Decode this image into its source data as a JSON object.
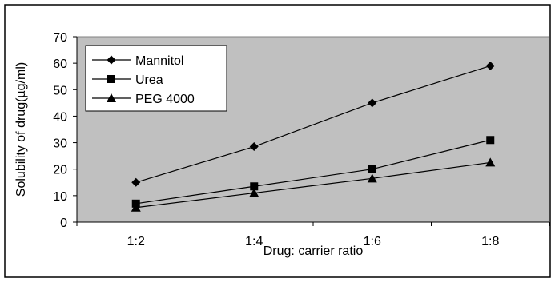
{
  "chart_data": {
    "type": "line",
    "title": "",
    "xlabel": "Drug: carrier ratio",
    "ylabel": "Solubility of drug(µg/ml)",
    "categories": [
      "1:2",
      "1:4",
      "1:6",
      "1:8"
    ],
    "ylim": [
      0,
      70
    ],
    "yticks": [
      0,
      10,
      20,
      30,
      40,
      50,
      60,
      70
    ],
    "grid": false,
    "plot_background": "#c0c0c0",
    "legend_position": "top-left",
    "series": [
      {
        "name": "Mannitol",
        "marker": "diamond",
        "values": [
          15,
          28.5,
          45,
          59
        ]
      },
      {
        "name": "Urea",
        "marker": "square",
        "values": [
          7,
          13.5,
          20,
          31
        ]
      },
      {
        "name": "PEG 4000",
        "marker": "triangle",
        "values": [
          5.5,
          11,
          16.5,
          22.5
        ]
      }
    ]
  }
}
